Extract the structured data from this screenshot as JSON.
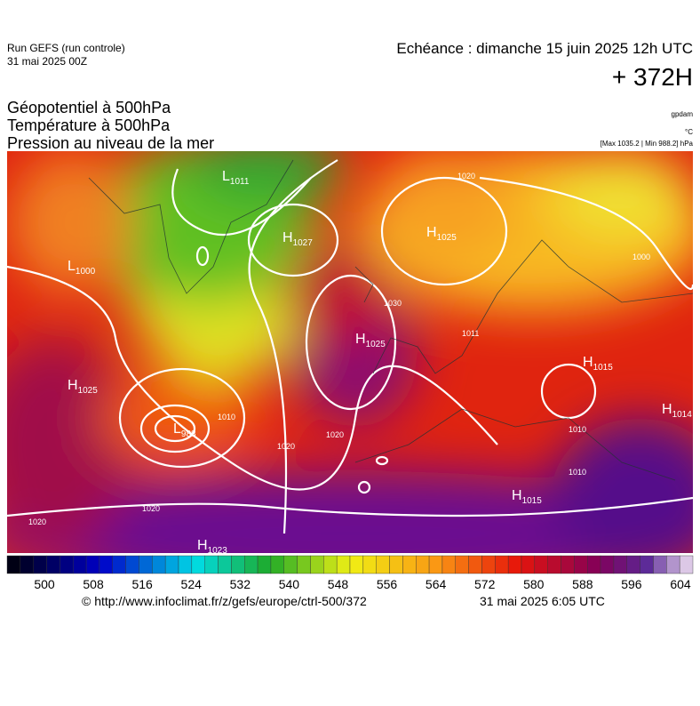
{
  "header": {
    "run": "Run GEFS (run controle)",
    "run_date": "31 mai 2025 00Z",
    "echeance": "Echéance : dimanche 15 juin 2025 12h UTC",
    "lead": "+ 372H"
  },
  "titles": [
    "Géopotentiel à 500hPa",
    "Température à 500hPa",
    "Pression au niveau de la mer"
  ],
  "units": {
    "geopotential": "gpdam",
    "temperature": "°C",
    "pressure": "[Max 1035.2 | Min 988.2] hPa"
  },
  "pressure_centers": [
    {
      "letter": "L",
      "sub": "1011"
    },
    {
      "letter": "H",
      "sub": "1027"
    },
    {
      "letter": "H",
      "sub": "1025"
    },
    {
      "letter": "L",
      "sub": "1000"
    },
    {
      "letter": "H",
      "sub": "1025"
    },
    {
      "letter": "H",
      "sub": "1025"
    },
    {
      "letter": "L",
      "sub": "988"
    },
    {
      "letter": "H",
      "sub": "1015"
    },
    {
      "letter": "H",
      "sub": "1014"
    },
    {
      "letter": "H",
      "sub": "1015"
    },
    {
      "letter": "H",
      "sub": "1023"
    }
  ],
  "isobar_labels": [
    "1030",
    "1011",
    "1010",
    "1020",
    "1020",
    "1010",
    "1010",
    "1020",
    "1020",
    "1000",
    "1020"
  ],
  "colorbar": {
    "ticks": [
      500,
      508,
      516,
      524,
      532,
      540,
      548,
      556,
      564,
      572,
      580,
      588,
      596,
      604
    ]
  },
  "footer": {
    "url": "© http://www.infoclimat.fr/z/gefs/europe/ctrl-500/372",
    "time": "31 mai 2025  6:05 UTC"
  }
}
